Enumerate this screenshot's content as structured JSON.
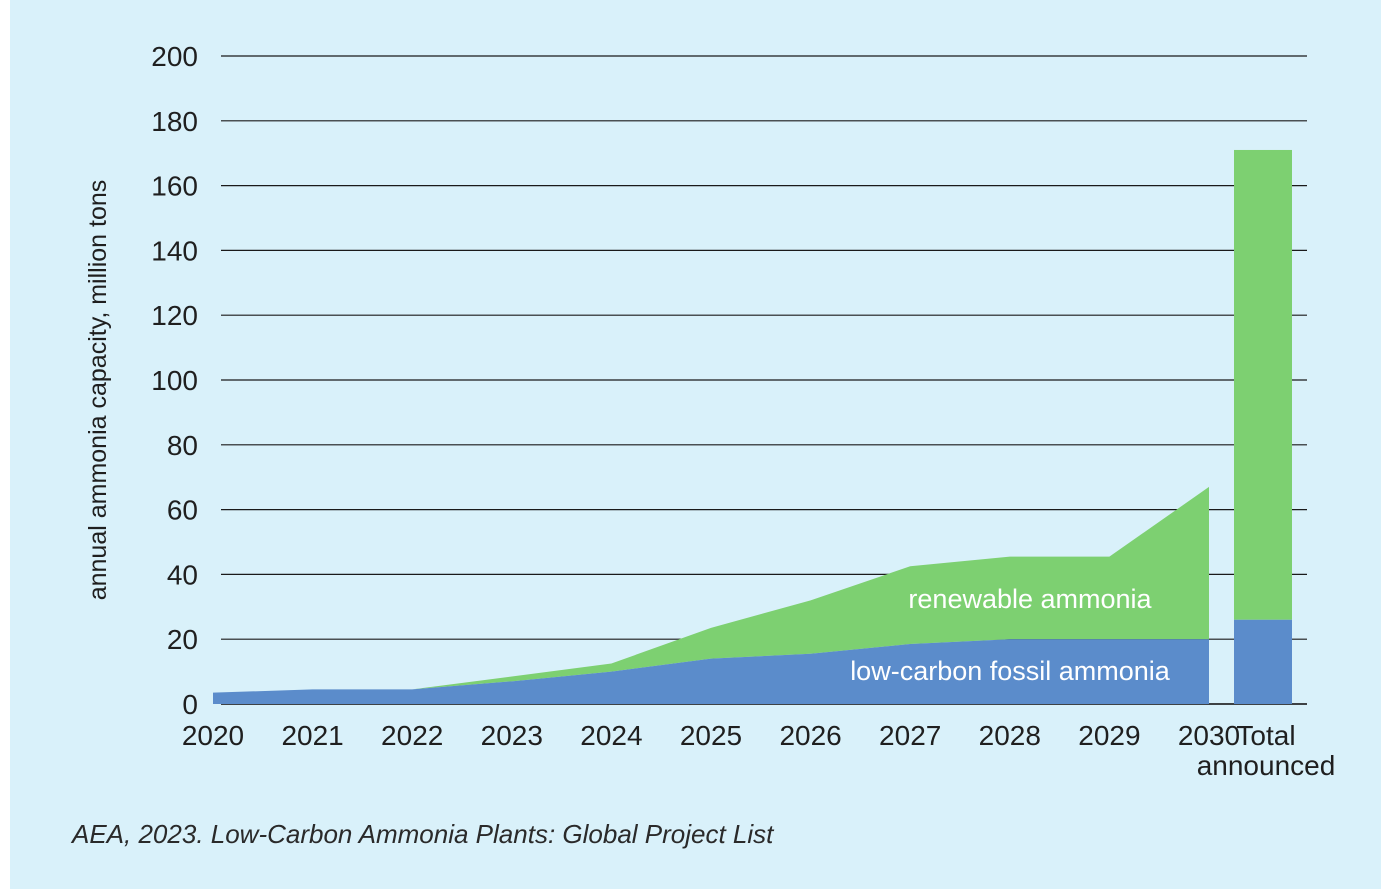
{
  "chart_data": {
    "type": "area",
    "ylabel": "annual ammonia capacity, million tons",
    "ylim": [
      0,
      200
    ],
    "yticks": [
      0,
      20,
      40,
      60,
      80,
      100,
      120,
      140,
      160,
      180,
      200
    ],
    "grid": true,
    "categories": [
      "2020",
      "2021",
      "2022",
      "2023",
      "2024",
      "2025",
      "2026",
      "2027",
      "2028",
      "2029",
      "2030"
    ],
    "series": [
      {
        "name": "low-carbon fossil ammonia",
        "color": "#5b8ccb",
        "values": [
          3.5,
          4.5,
          4.5,
          7,
          10,
          14,
          15.5,
          18.5,
          20,
          20,
          20
        ]
      },
      {
        "name": "renewable ammonia",
        "color": "#7dd071",
        "values": [
          0,
          0,
          0,
          1.5,
          2.5,
          9.5,
          16.5,
          24,
          25.5,
          25.5,
          47
        ]
      }
    ],
    "total_bar": {
      "label": "Total announced",
      "low_carbon_fossil": 26,
      "renewable": 145,
      "total": 171
    }
  },
  "source": "AEA, 2023. Low-Carbon Ammonia Plants: Global Project List"
}
